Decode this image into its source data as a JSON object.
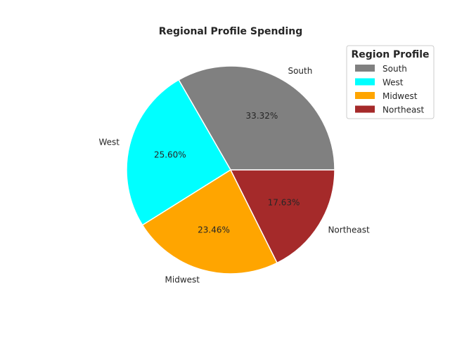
{
  "chart_data": {
    "type": "pie",
    "title": "Regional Profile Spending",
    "categories": [
      "South",
      "West",
      "Midwest",
      "Northeast"
    ],
    "values": [
      33.32,
      25.6,
      23.46,
      17.63
    ],
    "percent_labels": [
      "33.32%",
      "25.60%",
      "23.46%",
      "17.63%"
    ],
    "colors": [
      "#808080",
      "#00ffff",
      "#ffa500",
      "#a52a2a"
    ],
    "start_angle_deg": 0,
    "direction": "counterclockwise",
    "legend": {
      "title": "Region Profile",
      "placement": "top-right",
      "entries": [
        "South",
        "West",
        "Midwest",
        "Northeast"
      ]
    }
  }
}
